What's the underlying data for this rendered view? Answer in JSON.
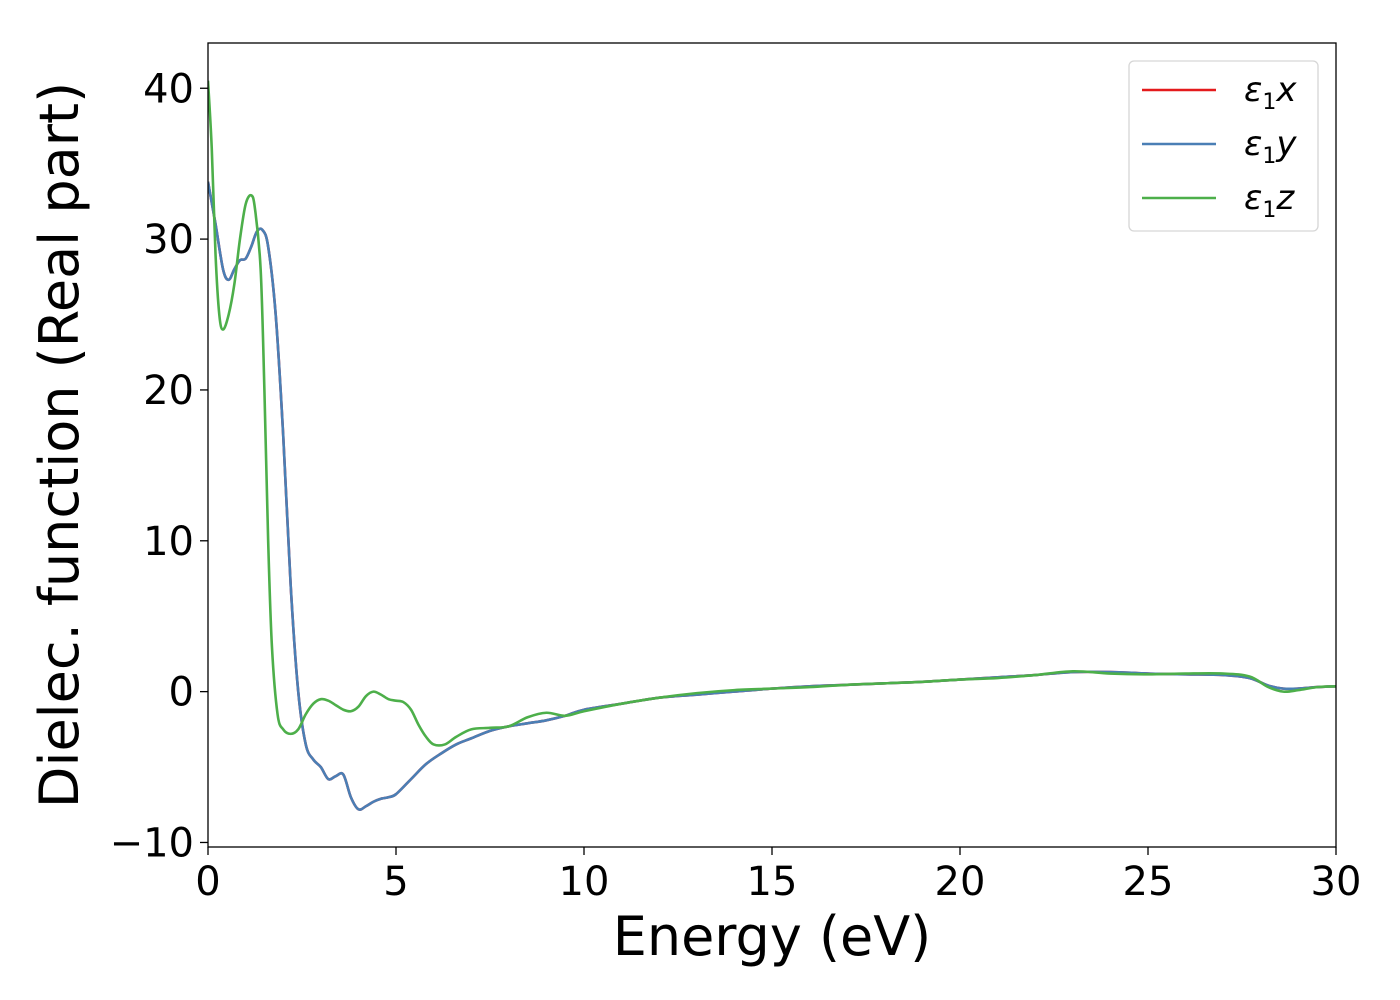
{
  "chart_data": {
    "type": "line",
    "title": "",
    "xlabel": "Energy (eV)",
    "ylabel": "Dielec. function (Real part)",
    "xlim": [
      0,
      30
    ],
    "ylim": [
      -10.3,
      43
    ],
    "xticks": [
      0,
      5,
      10,
      15,
      20,
      25,
      30
    ],
    "xtick_labels": [
      "0",
      "5",
      "10",
      "15",
      "20",
      "25",
      "30"
    ],
    "yticks": [
      -10,
      0,
      10,
      20,
      30,
      40
    ],
    "ytick_labels": [
      "−10",
      "0",
      "10",
      "20",
      "30",
      "40"
    ],
    "grid": false,
    "legend_position": "top-right",
    "series": [
      {
        "name_base": "ε",
        "name_sub": "1",
        "name_tail": "x",
        "color": "#e41a1c",
        "x": [
          0,
          0.2,
          0.4,
          0.55,
          0.7,
          0.85,
          1.0,
          1.15,
          1.3,
          1.45,
          1.6,
          1.8,
          2.0,
          2.2,
          2.4,
          2.6,
          2.8,
          3.0,
          3.2,
          3.4,
          3.6,
          3.8,
          4.0,
          4.2,
          4.4,
          4.6,
          4.8,
          5.0,
          5.4,
          5.8,
          6.2,
          6.6,
          7.0,
          7.5,
          8.0,
          8.5,
          9.0,
          9.5,
          10.0,
          11.0,
          12.0,
          13.0,
          14.0,
          15.0,
          16.0,
          17.0,
          18.0,
          19.0,
          20.0,
          21.0,
          22.0,
          23.0,
          24.0,
          25.0,
          26.0,
          27.0,
          27.7,
          28.2,
          28.6,
          29.0,
          29.5,
          30.0
        ],
        "y": [
          33.8,
          31.0,
          28.0,
          27.3,
          28.0,
          28.6,
          28.7,
          29.5,
          30.5,
          30.6,
          29.5,
          25.0,
          17.0,
          7.0,
          0.0,
          -3.5,
          -4.5,
          -5.0,
          -5.8,
          -5.6,
          -5.5,
          -7.0,
          -7.8,
          -7.6,
          -7.3,
          -7.1,
          -7.0,
          -6.8,
          -5.8,
          -4.8,
          -4.1,
          -3.5,
          -3.1,
          -2.6,
          -2.3,
          -2.1,
          -1.9,
          -1.6,
          -1.2,
          -0.8,
          -0.4,
          -0.2,
          0.0,
          0.2,
          0.35,
          0.45,
          0.55,
          0.65,
          0.8,
          0.95,
          1.1,
          1.3,
          1.3,
          1.2,
          1.15,
          1.1,
          0.9,
          0.4,
          0.2,
          0.2,
          0.3,
          0.35
        ]
      },
      {
        "name_base": "ε",
        "name_sub": "1",
        "name_tail": "y",
        "color": "#4a7fb5",
        "x": [
          0,
          0.2,
          0.4,
          0.55,
          0.7,
          0.85,
          1.0,
          1.15,
          1.3,
          1.45,
          1.6,
          1.8,
          2.0,
          2.2,
          2.4,
          2.6,
          2.8,
          3.0,
          3.2,
          3.4,
          3.6,
          3.8,
          4.0,
          4.2,
          4.4,
          4.6,
          4.8,
          5.0,
          5.4,
          5.8,
          6.2,
          6.6,
          7.0,
          7.5,
          8.0,
          8.5,
          9.0,
          9.5,
          10.0,
          11.0,
          12.0,
          13.0,
          14.0,
          15.0,
          16.0,
          17.0,
          18.0,
          19.0,
          20.0,
          21.0,
          22.0,
          23.0,
          24.0,
          25.0,
          26.0,
          27.0,
          27.7,
          28.2,
          28.6,
          29.0,
          29.5,
          30.0
        ],
        "y": [
          33.8,
          31.0,
          28.0,
          27.3,
          28.0,
          28.6,
          28.7,
          29.5,
          30.5,
          30.6,
          29.5,
          25.0,
          17.0,
          7.0,
          0.0,
          -3.5,
          -4.5,
          -5.0,
          -5.8,
          -5.6,
          -5.5,
          -7.0,
          -7.8,
          -7.6,
          -7.3,
          -7.1,
          -7.0,
          -6.8,
          -5.8,
          -4.8,
          -4.1,
          -3.5,
          -3.1,
          -2.6,
          -2.3,
          -2.1,
          -1.9,
          -1.6,
          -1.2,
          -0.8,
          -0.4,
          -0.2,
          0.0,
          0.2,
          0.35,
          0.45,
          0.55,
          0.65,
          0.8,
          0.95,
          1.1,
          1.3,
          1.3,
          1.2,
          1.15,
          1.1,
          0.9,
          0.4,
          0.2,
          0.2,
          0.3,
          0.35
        ]
      },
      {
        "name_base": "ε",
        "name_sub": "1",
        "name_tail": "z",
        "color": "#4daf4a",
        "x": [
          0,
          0.1,
          0.2,
          0.3,
          0.4,
          0.55,
          0.7,
          0.85,
          1.0,
          1.15,
          1.25,
          1.4,
          1.5,
          1.6,
          1.7,
          1.85,
          2.0,
          2.2,
          2.4,
          2.6,
          2.8,
          3.0,
          3.2,
          3.4,
          3.6,
          3.8,
          4.0,
          4.2,
          4.4,
          4.6,
          4.8,
          5.0,
          5.2,
          5.4,
          5.6,
          5.8,
          6.0,
          6.3,
          6.6,
          7.0,
          7.5,
          8.0,
          8.5,
          9.0,
          9.5,
          10.0,
          11.0,
          12.0,
          13.0,
          14.0,
          15.0,
          16.0,
          17.0,
          18.0,
          19.0,
          20.0,
          21.0,
          22.0,
          23.0,
          24.0,
          25.0,
          26.0,
          27.0,
          27.7,
          28.2,
          28.6,
          29.0,
          29.5,
          30.0
        ],
        "y": [
          40.5,
          36.0,
          29.0,
          25.0,
          24.0,
          25.0,
          27.0,
          30.0,
          32.3,
          32.9,
          32.0,
          28.0,
          20.0,
          10.0,
          3.0,
          -1.5,
          -2.5,
          -2.8,
          -2.5,
          -1.5,
          -0.8,
          -0.5,
          -0.6,
          -0.9,
          -1.2,
          -1.3,
          -1.0,
          -0.3,
          0.0,
          -0.2,
          -0.5,
          -0.6,
          -0.7,
          -1.2,
          -2.2,
          -3.0,
          -3.5,
          -3.5,
          -3.0,
          -2.5,
          -2.4,
          -2.3,
          -1.7,
          -1.4,
          -1.6,
          -1.3,
          -0.8,
          -0.4,
          -0.1,
          0.1,
          0.2,
          0.3,
          0.45,
          0.55,
          0.65,
          0.8,
          0.9,
          1.1,
          1.35,
          1.2,
          1.15,
          1.2,
          1.2,
          1.0,
          0.3,
          0.0,
          0.1,
          0.3,
          0.35
        ]
      }
    ]
  }
}
